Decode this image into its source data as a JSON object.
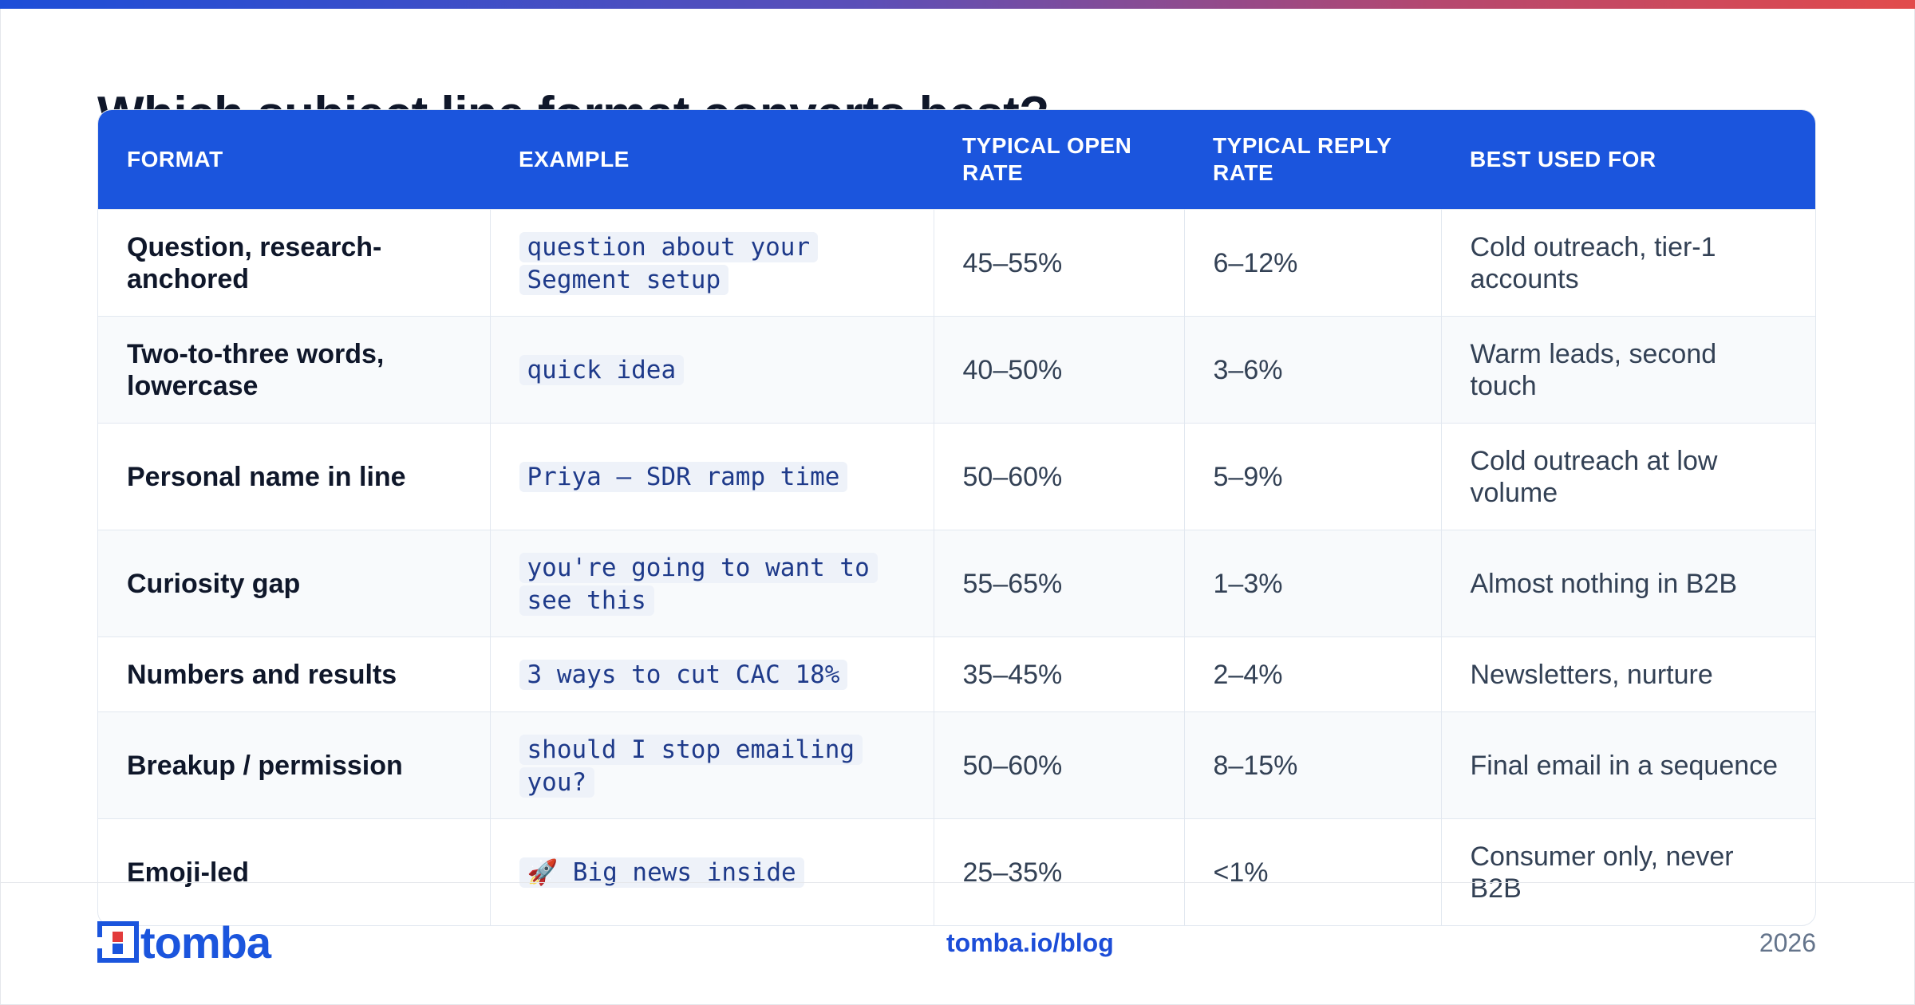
{
  "page": {
    "title": "Which subject line format converts best?",
    "accent_color": "#1b55dd"
  },
  "table": {
    "headers": [
      "FORMAT",
      "EXAMPLE",
      "TYPICAL OPEN RATE",
      "TYPICAL REPLY RATE",
      "BEST USED FOR"
    ],
    "rows": [
      {
        "format": "Question, research-anchored",
        "example": "question about your Segment setup",
        "open_rate": "45–55%",
        "reply_rate": "6–12%",
        "best_for": "Cold outreach, tier-1 accounts"
      },
      {
        "format": "Two-to-three words, lowercase",
        "example": "quick idea",
        "open_rate": "40–50%",
        "reply_rate": "3–6%",
        "best_for": "Warm leads, second touch"
      },
      {
        "format": "Personal name in line",
        "example": "Priya — SDR ramp time",
        "open_rate": "50–60%",
        "reply_rate": "5–9%",
        "best_for": "Cold outreach at low volume"
      },
      {
        "format": "Curiosity gap",
        "example": "you're going to want to see this",
        "open_rate": "55–65%",
        "reply_rate": "1–3%",
        "best_for": "Almost nothing in B2B"
      },
      {
        "format": "Numbers and results",
        "example": "3 ways to cut CAC 18%",
        "open_rate": "35–45%",
        "reply_rate": "2–4%",
        "best_for": "Newsletters, nurture"
      },
      {
        "format": "Breakup / permission",
        "example": "should I stop emailing you?",
        "open_rate": "50–60%",
        "reply_rate": "8–15%",
        "best_for": "Final email in a sequence"
      },
      {
        "format": "Emoji-led",
        "example": "🚀 Big news inside",
        "open_rate": "25–35%",
        "reply_rate": "<1%",
        "best_for": "Consumer only, never B2B"
      }
    ]
  },
  "footer": {
    "logo_icon": "tomba-logo-icon",
    "logo_text": "tomba",
    "link": "tomba.io/blog",
    "year": "2026"
  }
}
